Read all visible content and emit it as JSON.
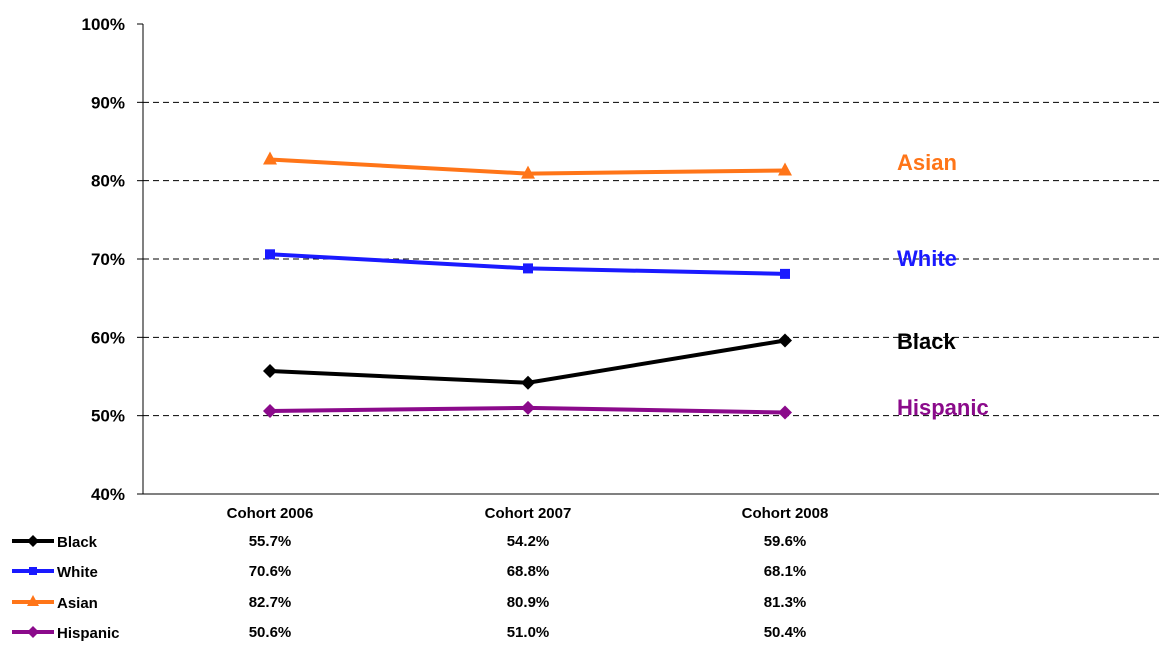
{
  "chart_data": {
    "type": "line",
    "categories": [
      "Cohort 2006",
      "Cohort 2007",
      "Cohort 2008"
    ],
    "ylim": [
      40,
      100
    ],
    "y_ticks": [
      "40%",
      "50%",
      "60%",
      "70%",
      "80%",
      "90%",
      "100%"
    ],
    "grid": "horizontal dashed",
    "series": [
      {
        "name": "Black",
        "values": [
          55.7,
          54.2,
          59.6
        ],
        "labels": [
          "55.7%",
          "54.2%",
          "59.6%"
        ],
        "color": "#000000",
        "marker": "diamond",
        "label_color": "#000000"
      },
      {
        "name": "White",
        "values": [
          70.6,
          68.8,
          68.1
        ],
        "labels": [
          "70.6%",
          "68.8%",
          "68.1%"
        ],
        "color": "#1a1aff",
        "marker": "square",
        "label_color": "#1a1aff"
      },
      {
        "name": "Asian",
        "values": [
          82.7,
          80.9,
          81.3
        ],
        "labels": [
          "82.7%",
          "80.9%",
          "81.3%"
        ],
        "color": "#ff7518",
        "marker": "triangle",
        "label_color": "#ff7518"
      },
      {
        "name": "Hispanic",
        "values": [
          50.6,
          51.0,
          50.4
        ],
        "labels": [
          "50.6%",
          "51.0%",
          "50.4%"
        ],
        "color": "#8b0a8b",
        "marker": "diamond",
        "label_color": "#8b0a8b"
      }
    ]
  }
}
